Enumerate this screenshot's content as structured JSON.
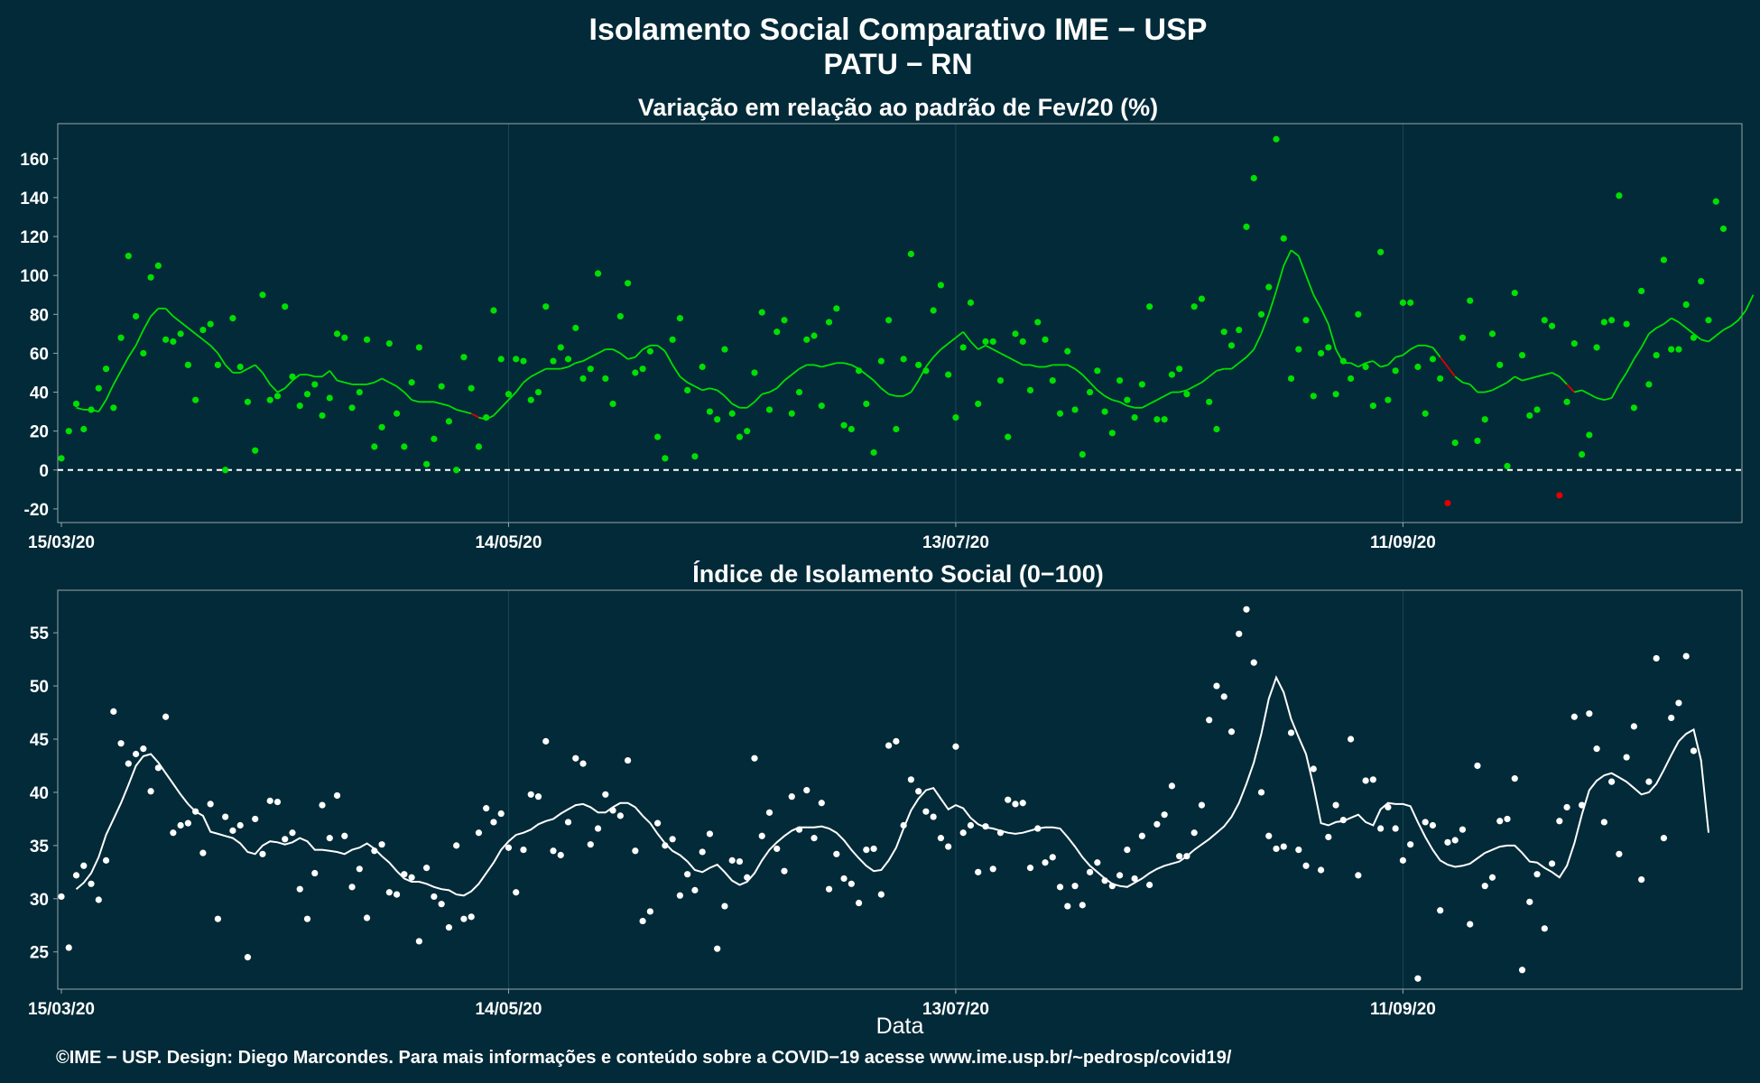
{
  "title": "Isolamento Social Comparativo IME − USP",
  "subtitle": "PATU − RN",
  "footer": "©IME − USP. Design: Diego Marcondes. Para mais informações e conteúdo sobre a COVID−19 acesse www.ime.usp.br/~pedrosp/covid19/",
  "colors": {
    "background": "#022a38",
    "text": "#ffffff",
    "variation_above": "#00e000",
    "variation_below": "#e00000",
    "index_series": "#ffffff",
    "grid": "#1d4654",
    "panel_border": "#9aa7ad"
  },
  "chart_data": [
    {
      "type": "scatter",
      "title": "Variação em relação ao padrão de Fev/20 (%)",
      "xlabel": "",
      "ylabel": "",
      "x_start": "15/03/20",
      "x_end": "26/10/20",
      "x_ticks": [
        "15/03/20",
        "14/05/20",
        "13/07/20",
        "11/09/20"
      ],
      "ylim": [
        -27,
        178
      ],
      "y_ticks": [
        -20,
        0,
        20,
        40,
        60,
        80,
        100,
        120,
        140,
        160
      ],
      "reference_line": 0,
      "grid": true,
      "series": [
        {
          "values": [
            6,
            20,
            34,
            21,
            31,
            42,
            52,
            32,
            68,
            110,
            79,
            60,
            99,
            105,
            67,
            66,
            70,
            54,
            36,
            72,
            75,
            54,
            0,
            78,
            53,
            35,
            10,
            90,
            36,
            38,
            84,
            48,
            33,
            39,
            44,
            28,
            37,
            70,
            68,
            32,
            40,
            67,
            12,
            22,
            65,
            29,
            12,
            45,
            63,
            3,
            16,
            43,
            25,
            0,
            58,
            42,
            12,
            27,
            82,
            57,
            39,
            57,
            56,
            36,
            40,
            84,
            56,
            63,
            57,
            73,
            47,
            52,
            101,
            47,
            34,
            79,
            96,
            50,
            52,
            61,
            17,
            6,
            67,
            78,
            41,
            7,
            53,
            30,
            26,
            62,
            29,
            17,
            20,
            50,
            81,
            31,
            71,
            77,
            29,
            40,
            67,
            69,
            33,
            76,
            83,
            23,
            21,
            51,
            34,
            9,
            56,
            77,
            21,
            57,
            111,
            54,
            51,
            82,
            95,
            49,
            27,
            63,
            86,
            34,
            66,
            66,
            46,
            17,
            70,
            66,
            41,
            76,
            67,
            46,
            29,
            61,
            31,
            8,
            40,
            51,
            30,
            19,
            46,
            36,
            27,
            44,
            84,
            26,
            26,
            49,
            52,
            39,
            84,
            88,
            35,
            21,
            71,
            64,
            72,
            125,
            150,
            80,
            94,
            170,
            119,
            47,
            62,
            77,
            38,
            60,
            63,
            39,
            56,
            47,
            80,
            53,
            33,
            112,
            36,
            51,
            86,
            86,
            53,
            29,
            57,
            47,
            -17,
            14,
            68,
            87,
            15,
            26,
            70,
            54,
            2,
            91,
            59,
            28,
            31,
            77,
            74,
            -13,
            35,
            65,
            8,
            18,
            63,
            76,
            77,
            141,
            75,
            32,
            92,
            44,
            59,
            108,
            62,
            62,
            85,
            68,
            97,
            77,
            138,
            124
          ]
        }
      ],
      "moving_average": [
        32,
        31,
        31,
        30,
        36,
        44,
        51,
        58,
        64,
        72,
        79,
        83,
        83,
        79,
        76,
        73,
        70,
        67,
        64,
        60,
        54,
        50,
        50,
        52,
        54,
        50,
        44,
        40,
        42,
        46,
        49,
        49,
        48,
        48,
        51,
        46,
        45,
        44,
        44,
        44,
        45,
        47,
        45,
        43,
        40,
        36,
        35,
        35,
        35,
        34,
        33,
        31,
        30,
        29,
        27,
        26,
        28,
        32,
        36,
        40,
        45,
        48,
        50,
        52,
        52,
        52,
        53,
        55,
        56,
        58,
        60,
        62,
        62,
        60,
        57,
        58,
        62,
        64,
        64,
        61,
        54,
        48,
        45,
        43,
        41,
        42,
        41,
        38,
        34,
        32,
        32,
        35,
        39,
        40,
        42,
        46,
        49,
        52,
        54,
        54,
        53,
        54,
        55,
        55,
        54,
        52,
        49,
        46,
        42,
        39,
        38,
        38,
        40,
        46,
        53,
        58,
        62,
        65,
        68,
        71,
        66,
        62,
        64,
        62,
        60,
        58,
        56,
        54,
        54,
        53,
        53,
        54,
        54,
        54,
        52,
        49,
        45,
        41,
        38,
        36,
        35,
        33,
        32,
        32,
        34,
        36,
        38,
        40,
        40,
        41,
        43,
        45,
        48,
        51,
        52,
        52,
        55,
        58,
        62,
        70,
        80,
        92,
        105,
        113,
        110,
        100,
        90,
        83,
        75,
        62,
        55,
        55,
        53,
        55,
        56,
        53,
        54,
        58,
        59,
        62,
        64,
        64,
        63,
        58,
        53,
        48,
        45,
        44,
        40,
        40,
        41,
        43,
        45,
        48,
        46,
        47,
        48,
        49,
        50,
        48,
        44,
        40,
        41,
        39,
        37,
        36,
        37,
        44,
        50,
        57,
        63,
        70,
        73,
        75,
        78,
        76,
        73,
        70,
        67,
        66,
        69,
        72,
        74,
        77,
        82,
        90
      ]
    },
    {
      "type": "scatter",
      "title": "Índice de Isolamento Social (0−100)",
      "xlabel": "Data",
      "ylabel": "",
      "x_start": "15/03/20",
      "x_end": "26/10/20",
      "x_ticks": [
        "15/03/20",
        "14/05/20",
        "13/07/20",
        "11/09/20"
      ],
      "ylim": [
        21.5,
        59
      ],
      "y_ticks": [
        25,
        30,
        35,
        40,
        45,
        50,
        55
      ],
      "grid": true,
      "series": [
        {
          "values": [
            30.2,
            25.4,
            32.2,
            33.1,
            31.4,
            29.9,
            33.6,
            47.6,
            44.6,
            42.7,
            43.6,
            44.1,
            40.1,
            42.3,
            47.1,
            36.2,
            36.9,
            37.1,
            38.2,
            34.3,
            38.9,
            28.1,
            37.7,
            36.4,
            36.9,
            24.5,
            37.5,
            34.2,
            39.2,
            39.1,
            35.6,
            36.2,
            30.9,
            28.1,
            32.4,
            38.8,
            35.7,
            39.7,
            35.9,
            31.1,
            32.8,
            28.2,
            34.5,
            35.1,
            30.6,
            30.4,
            32.3,
            32.0,
            26.0,
            32.9,
            30.2,
            29.5,
            27.3,
            35.0,
            28.1,
            28.3,
            36.2,
            38.5,
            37.2,
            38.0,
            34.8,
            30.6,
            34.6,
            39.8,
            39.6,
            44.8,
            34.5,
            34.1,
            37.2,
            43.2,
            42.7,
            35.1,
            36.6,
            39.8,
            38.3,
            37.8,
            43.0,
            34.5,
            27.9,
            28.8,
            37.1,
            35.0,
            35.6,
            30.3,
            32.3,
            30.8,
            34.4,
            36.1,
            25.3,
            29.3,
            33.6,
            33.5,
            32.0,
            43.2,
            35.9,
            38.1,
            34.7,
            32.6,
            39.6,
            36.5,
            40.2,
            35.7,
            39.0,
            30.9,
            34.2,
            31.9,
            31.4,
            29.6,
            34.6,
            34.7,
            30.4,
            44.4,
            44.8,
            36.9,
            41.2,
            40.1,
            38.2,
            37.7,
            35.7,
            34.9,
            44.3,
            36.2,
            36.9,
            32.5,
            36.8,
            32.8,
            36.2,
            39.3,
            38.9,
            39.0,
            32.9,
            36.6,
            33.4,
            33.9,
            31.1,
            29.3,
            31.2,
            29.4,
            32.5,
            33.4,
            31.7,
            31.2,
            32.2,
            34.6,
            31.9,
            35.9,
            31.3,
            37.0,
            37.9,
            40.6,
            34.0,
            34.0,
            36.2,
            38.8,
            46.8,
            50.0,
            49.0,
            45.7,
            54.9,
            57.2,
            52.2,
            40.0,
            35.9,
            34.7,
            34.9,
            45.6,
            34.6,
            33.1,
            42.2,
            32.7,
            35.8,
            38.8,
            37.4,
            45.0,
            32.2,
            41.1,
            41.2,
            36.6,
            38.6,
            36.6,
            33.6,
            35.1,
            22.5,
            37.2,
            36.9,
            28.9,
            35.3,
            35.5,
            36.5,
            27.6,
            42.5,
            31.2,
            32.0,
            37.3,
            37.5,
            41.3,
            23.3,
            29.7,
            32.3,
            27.2,
            33.3,
            37.3,
            38.6,
            47.1,
            38.8,
            47.4,
            44.1,
            37.2,
            41.0,
            34.2,
            43.3,
            46.2,
            31.8,
            41.0,
            52.6,
            35.7,
            47.0,
            48.4,
            52.8,
            43.9
          ]
        }
      ],
      "moving_average": [
        30.9,
        31.5,
        32.4,
        33.9,
        36.0,
        37.5,
        39.0,
        40.7,
        42.5,
        43.4,
        43.6,
        42.8,
        41.8,
        40.8,
        39.8,
        38.9,
        38.2,
        37.8,
        36.3,
        36.1,
        35.9,
        35.7,
        35.2,
        34.4,
        34.2,
        35.0,
        35.4,
        35.3,
        35.1,
        35.3,
        35.7,
        35.4,
        34.6,
        34.6,
        34.5,
        34.4,
        34.2,
        34.6,
        34.8,
        35.2,
        34.7,
        34.0,
        33.4,
        32.6,
        31.9,
        31.6,
        31.6,
        31.4,
        31.1,
        30.9,
        30.8,
        30.4,
        30.3,
        30.7,
        31.4,
        32.4,
        33.4,
        34.6,
        35.4,
        36.0,
        36.2,
        36.5,
        37.0,
        37.3,
        37.5,
        38.0,
        38.4,
        38.8,
        38.9,
        38.6,
        38.1,
        38.1,
        38.6,
        39.0,
        39.0,
        38.6,
        37.8,
        37.1,
        36.1,
        35.2,
        34.5,
        34.1,
        33.5,
        32.7,
        32.5,
        32.9,
        33.2,
        32.5,
        31.7,
        31.3,
        31.6,
        32.4,
        33.6,
        34.6,
        35.3,
        35.9,
        36.4,
        36.7,
        36.7,
        36.7,
        36.8,
        36.6,
        36.2,
        35.5,
        34.6,
        33.8,
        33.1,
        32.6,
        32.7,
        33.6,
        34.8,
        36.6,
        38.3,
        39.4,
        40.2,
        40.4,
        39.4,
        38.4,
        38.8,
        38.5,
        37.6,
        37.0,
        36.7,
        36.6,
        36.4,
        36.2,
        36.1,
        36.2,
        36.4,
        36.6,
        36.7,
        36.7,
        36.6,
        35.8,
        34.9,
        33.9,
        33.1,
        32.5,
        31.9,
        31.4,
        31.2,
        31.1,
        31.5,
        31.9,
        32.4,
        32.8,
        33.1,
        33.3,
        33.5,
        34.0,
        34.6,
        35.1,
        35.6,
        36.2,
        36.8,
        37.7,
        39.0,
        40.8,
        42.8,
        45.5,
        48.8,
        50.8,
        49.4,
        46.9,
        45.2,
        43.6,
        40.6,
        37.1,
        36.9,
        37.2,
        37.3,
        37.6,
        37.9,
        37.2,
        36.9,
        38.4,
        39.0,
        38.9,
        38.9,
        38.7,
        37.2,
        35.8,
        34.6,
        33.6,
        33.2,
        33.0,
        33.1,
        33.3,
        33.8,
        34.3,
        34.6,
        34.9,
        35.0,
        35.0,
        34.3,
        33.5,
        33.4,
        32.9,
        32.5,
        32.0,
        33.1,
        35.2,
        37.9,
        40.2,
        41.1,
        41.6,
        41.8,
        41.4,
        41.0,
        40.4,
        39.8,
        40.0,
        40.8,
        42.1,
        43.5,
        44.8,
        45.5,
        45.9,
        43.0,
        36.2
      ]
    }
  ]
}
